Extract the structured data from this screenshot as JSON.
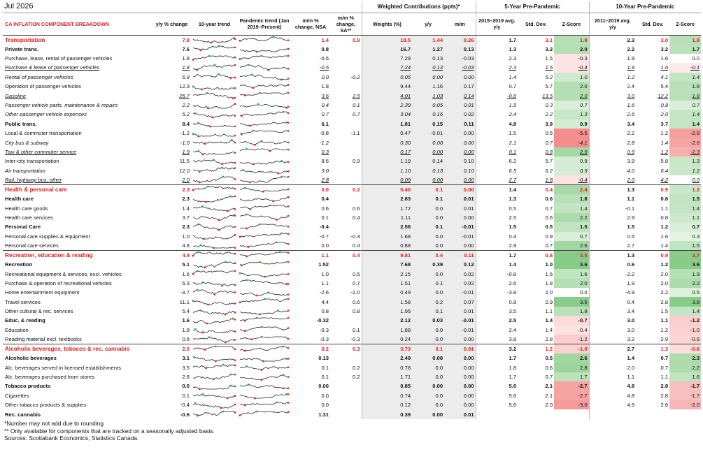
{
  "title": "Jul 2026",
  "groups": {
    "weighted": "Weighted Contributions (ppts)*",
    "five": "5-Year Pre-Pandemic",
    "ten": "10-Year Pre-Pandemic"
  },
  "headers": {
    "name": "CA INFLATION COMPONENT BREAKDOWN",
    "yy": "y/y % change",
    "trend10": "10-year trend",
    "pandemic": "Pandemic trend (Jan 2019–Present)",
    "mm_nsa": "m/m % change, NSA",
    "mm_sa": "m/m % change, SA**",
    "weights": "Weights (%)",
    "w_yy": "y/y",
    "w_mm": "m/m",
    "avg5": "2015–2019 avg. y/y",
    "sd5": "Std. Dev.",
    "z5": "Z-Score",
    "avg10": "2011–2019 avg. y/y",
    "sd10": "Std. Dev.",
    "z10": "Z-Score"
  },
  "colors": {
    "accent": "#e0201c",
    "z_red": "#f26b6b",
    "z_green": "#5cb85c"
  },
  "rows": [
    {
      "name": "Transportation",
      "style": "sec",
      "yy": "7.8",
      "nsa": "1.4",
      "sa": "0.8",
      "w": "18.5",
      "wyy": "1.44",
      "wmm": "0.26",
      "a5": "1.7",
      "s5": "3.1",
      "z5": "1.9",
      "a10": "2.3",
      "s10": "3.0",
      "z10": "1.8"
    },
    {
      "name": "Private trans.",
      "style": "bold",
      "yy": "7.6",
      "nsa": "0.8",
      "sa": "",
      "w": "16.7",
      "wyy": "1.27",
      "wmm": "0.13",
      "a5": "1.3",
      "s5": "3.2",
      "z5": "2.0",
      "a10": "2.2",
      "s10": "3.2",
      "z10": "1.7"
    },
    {
      "name": "Purchase, lease, rental of passenger vehicles",
      "style": "",
      "yy": "1.8",
      "nsa": "-0.5",
      "sa": "",
      "w": "7.29",
      "wyy": "0.13",
      "wmm": "-0.03",
      "a5": "2.3",
      "s5": "1.5",
      "z5": "-0.3",
      "a10": "1.9",
      "s10": "1.6",
      "z10": "0.0"
    },
    {
      "name": "Purchase & lease of passenger vehicles",
      "style": "it ul",
      "yy": "1.8",
      "nsa": "-0.5",
      "sa": "",
      "w": "7.24",
      "wyy": "0.13",
      "wmm": "-0.03",
      "a5": "2.3",
      "s5": "1.5",
      "z5": "-0.4",
      "a10": "1.9",
      "s10": "1.6",
      "z10": "-0.1"
    },
    {
      "name": "Rental of passenger vehicles",
      "style": "it",
      "yy": "6.8",
      "nsa": "0.0",
      "sa": "-0.2",
      "w": "0.05",
      "wyy": "0.00",
      "wmm": "0.00",
      "a5": "1.4",
      "s5": "5.2",
      "z5": "1.0",
      "a10": "1.2",
      "s10": "4.1",
      "z10": "1.4"
    },
    {
      "name": "Operation of passenger vehicles",
      "style": "",
      "yy": "12.3",
      "nsa": "1.8",
      "sa": "",
      "w": "9.44",
      "wyy": "1.16",
      "wmm": "0.17",
      "a5": "0.7",
      "s5": "5.7",
      "z5": "2.0",
      "a10": "2.4",
      "s10": "5.4",
      "z10": "1.8"
    },
    {
      "name": "Gasoline",
      "style": "it ul",
      "yy": "25.7",
      "nsa": "3.6",
      "sa": "2.5",
      "w": "4.01",
      "wyy": "1.03",
      "wmm": "0.14",
      "a5": "-0.6",
      "s5": "13.5",
      "z5": "2.0",
      "a10": "3.0",
      "s10": "12.2",
      "z10": "1.8"
    },
    {
      "name": "Passenger vehicle parts, maintenance & repairs",
      "style": "it",
      "yy": "2.2",
      "nsa": "0.4",
      "sa": "0.1",
      "w": "2.39",
      "wyy": "0.05",
      "wmm": "0.01",
      "a5": "1.9",
      "s5": "0.3",
      "z5": "0.7",
      "a10": "1.6",
      "s10": "0.8",
      "z10": "0.7"
    },
    {
      "name": "Other passenger vehicle expenses",
      "style": "it",
      "yy": "5.2",
      "nsa": "0.7",
      "sa": "0.7",
      "w": "3.04",
      "wyy": "0.16",
      "wmm": "0.02",
      "a5": "2.4",
      "s5": "2.2",
      "z5": "1.3",
      "a10": "2.6",
      "s10": "2.0",
      "z10": "1.4"
    },
    {
      "name": "Public trans.",
      "style": "bold",
      "yy": "8.4",
      "nsa": "6.1",
      "sa": "",
      "w": "1.81",
      "wyy": "0.15",
      "wmm": "0.11",
      "a5": "4.8",
      "s5": "3.9",
      "z5": "0.9",
      "a10": "3.4",
      "s10": "3.7",
      "z10": "1.4"
    },
    {
      "name": "Local & commuter transportation",
      "style": "",
      "yy": "-1.2",
      "nsa": "-0.8",
      "sa": "-1.1",
      "w": "0.47",
      "wyy": "-0.01",
      "wmm": "0.00",
      "a5": "1.5",
      "s5": "0.5",
      "z5": "-5.5",
      "a10": "2.2",
      "s10": "1.2",
      "z10": "-2.9"
    },
    {
      "name": "City bus & subway",
      "style": "it",
      "yy": "-1.0",
      "nsa": "-1.2",
      "sa": "",
      "w": "0.30",
      "wyy": "0.00",
      "wmm": "0.00",
      "a5": "2.1",
      "s5": "0.7",
      "z5": "-4.1",
      "a10": "2.8",
      "s10": "1.4",
      "z10": "-2.6"
    },
    {
      "name": "Taxi & other commuter service",
      "style": "it ul",
      "yy": "1.9",
      "nsa": "0.3",
      "sa": "",
      "w": "0.17",
      "wyy": "0.00",
      "wmm": "0.00",
      "a5": "0.1",
      "s5": "0.8",
      "z5": "2.5",
      "a10": "0.9",
      "s10": "1.2",
      "z10": "-2.3"
    },
    {
      "name": "Inter-city transportation",
      "style": "",
      "yy": "11.5",
      "nsa": "8.6",
      "sa": "0.9",
      "w": "1.19",
      "wyy": "0.14",
      "wmm": "0.10",
      "a5": "6.2",
      "s5": "5.7",
      "z5": "0.9",
      "a10": "3.9",
      "s10": "5.8",
      "z10": "1.3"
    },
    {
      "name": "Air transportation",
      "style": "it",
      "yy": "12.0",
      "nsa": "9.0",
      "sa": "",
      "w": "1.10",
      "wyy": "0.13",
      "wmm": "0.10",
      "a5": "6.5",
      "s5": "6.2",
      "z5": "0.9",
      "a10": "4.0",
      "s10": "6.4",
      "z10": "1.2"
    },
    {
      "name": "Rail, highway bus, other",
      "style": "it ul",
      "yy": "2.0",
      "nsa": "2.8",
      "sa": "",
      "w": "0.09",
      "wyy": "0.00",
      "wmm": "0.00",
      "a5": "2.7",
      "s5": "1.8",
      "z5": "-0.4",
      "a10": "2.0",
      "s10": "4.2",
      "z10": "0.0"
    },
    {
      "name": "Health & personal care",
      "style": "sec",
      "yy": "2.3",
      "nsa": "0.0",
      "sa": "0.2",
      "w": "5.40",
      "wyy": "0.1",
      "wmm": "0.00",
      "a5": "1.4",
      "s5": "0.4",
      "z5": "2.4",
      "a10": "1.3",
      "s10": "0.9",
      "z10": "1.2"
    },
    {
      "name": "Health care",
      "style": "bold",
      "yy": "2.3",
      "nsa": "0.4",
      "sa": "",
      "w": "2.83",
      "wyy": "0.1",
      "wmm": "0.01",
      "a5": "1.3",
      "s5": "0.6",
      "z5": "1.8",
      "a10": "1.1",
      "s10": "0.8",
      "z10": "1.5"
    },
    {
      "name": "Health care goods",
      "style": "",
      "yy": "1.4",
      "nsa": "0.6",
      "sa": "0.6",
      "w": "1.72",
      "wyy": "0.0",
      "wmm": "0.01",
      "a5": "0.5",
      "s5": "0.7",
      "z5": "1.4",
      "a10": "-0.1",
      "s10": "1.1",
      "z10": "1.4"
    },
    {
      "name": "Health care services",
      "style": "",
      "yy": "3.7",
      "nsa": "0.1",
      "sa": "0.4",
      "w": "1.11",
      "wyy": "0.0",
      "wmm": "0.00",
      "a5": "2.5",
      "s5": "0.6",
      "z5": "2.2",
      "a10": "2.9",
      "s10": "0.8",
      "z10": "1.1"
    },
    {
      "name": "Personal Care",
      "style": "bold",
      "yy": "2.3",
      "nsa": "-0.4",
      "sa": "",
      "w": "2.56",
      "wyy": "0.1",
      "wmm": "-0.01",
      "a5": "1.5",
      "s5": "0.5",
      "z5": "1.5",
      "a10": "1.5",
      "s10": "1.2",
      "z10": "0.7"
    },
    {
      "name": "Personal care supplies & equipment",
      "style": "",
      "yy": "1.0",
      "nsa": "-0.7",
      "sa": "-0.3",
      "w": "1.68",
      "wyy": "0.0",
      "wmm": "-0.01",
      "a5": "0.4",
      "s5": "0.9",
      "z5": "0.7",
      "a10": "0.5",
      "s10": "1.6",
      "z10": "0.3"
    },
    {
      "name": "Personal care services",
      "style": "",
      "yy": "4.8",
      "nsa": "0.0",
      "sa": "0.4",
      "w": "0.88",
      "wyy": "0.0",
      "wmm": "0.00",
      "a5": "2.9",
      "s5": "0.7",
      "z5": "2.6",
      "a10": "2.7",
      "s10": "1.4",
      "z10": "1.5"
    },
    {
      "name": "Recreation, education & reading",
      "style": "sec",
      "yy": "4.4",
      "nsa": "1.1",
      "sa": "0.4",
      "w": "9.81",
      "wyy": "0.4",
      "wmm": "0.11",
      "a5": "1.7",
      "s5": "0.8",
      "z5": "3.5",
      "a10": "1.3",
      "s10": "0.9",
      "z10": "3.7"
    },
    {
      "name": "Recreation",
      "style": "bold",
      "yy": "5.1",
      "nsa": "1.52",
      "sa": "",
      "w": "7.68",
      "wyy": "0.39",
      "wmm": "0.12",
      "a5": "1.4",
      "s5": "1.0",
      "z5": "3.6",
      "a10": "0.6",
      "s10": "1.2",
      "z10": "3.6"
    },
    {
      "name": "Recreational equipment & services, excl. vehicles",
      "style": "",
      "yy": "1.6",
      "nsa": "1.0",
      "sa": "0.5",
      "w": "2.15",
      "wyy": "0.0",
      "wmm": "0.02",
      "a5": "-0.8",
      "s5": "1.6",
      "z5": "1.6",
      "a10": "-2.2",
      "s10": "2.0",
      "z10": "1.9"
    },
    {
      "name": "Purchase & operation of recreational vehicles",
      "style": "",
      "yy": "6.3",
      "nsa": "1.1",
      "sa": "0.7",
      "w": "1.51",
      "wyy": "0.1",
      "wmm": "0.02",
      "a5": "2.6",
      "s5": "1.8",
      "z5": "2.0",
      "a10": "1.9",
      "s10": "2.0",
      "z10": "2.2"
    },
    {
      "name": "Home entertainment equipment",
      "style": "",
      "yy": "-3.7",
      "nsa": "-2.6",
      "sa": "-2.0",
      "w": "0.49",
      "wyy": "0.0",
      "wmm": "-0.01",
      "a5": "-3.8",
      "s5": "2.0",
      "z5": "0.0",
      "a10": "-4.9",
      "s10": "2.2",
      "z10": "0.5"
    },
    {
      "name": "Travel services",
      "style": "",
      "yy": "11.1",
      "nsa": "4.4",
      "sa": "0.6",
      "w": "1.58",
      "wyy": "0.2",
      "wmm": "0.07",
      "a5": "0.8",
      "s5": "2.9",
      "z5": "3.5",
      "a10": "0.4",
      "s10": "2.8",
      "z10": "3.8"
    },
    {
      "name": "Other cultural & rec. services",
      "style": "",
      "yy": "5.4",
      "nsa": "0.8",
      "sa": "0.8",
      "w": "1.95",
      "wyy": "0.1",
      "wmm": "0.01",
      "a5": "3.5",
      "s5": "1.1",
      "z5": "1.8",
      "a10": "3.4",
      "s10": "1.5",
      "z10": "1.4"
    },
    {
      "name": "Educ. & reading",
      "style": "bold",
      "yy": "1.6",
      "nsa": "-0.32",
      "sa": "",
      "w": "2.12",
      "wyy": "0.03",
      "wmm": "-0.01",
      "a5": "2.5",
      "s5": "1.4",
      "z5": "-0.7",
      "a10": "3.0",
      "s10": "1.1",
      "z10": "-1.2"
    },
    {
      "name": "Education",
      "style": "",
      "yy": "1.8",
      "nsa": "-0.3",
      "sa": "0.1",
      "w": "1.88",
      "wyy": "0.0",
      "wmm": "-0.01",
      "a5": "2.4",
      "s5": "1.4",
      "z5": "-0.4",
      "a10": "3.0",
      "s10": "1.2",
      "z10": "-1.0"
    },
    {
      "name": "Reading material excl. textbooks",
      "style": "",
      "yy": "0.6",
      "nsa": "-0.3",
      "sa": "-0.3",
      "w": "0.24",
      "wyy": "0.0",
      "wmm": "0.00",
      "a5": "3.8",
      "s5": "2.8",
      "z5": "-1.2",
      "a10": "3.2",
      "s10": "2.9",
      "z10": "-0.9"
    },
    {
      "name": "Alcoholic beverages, tobacco & rec. cannabis",
      "style": "sec",
      "yy": "2.0",
      "nsa": "0.2",
      "sa": "0.3",
      "w": "3.73",
      "wyy": "0.1",
      "wmm": "0.01",
      "a5": "3.2",
      "s5": "1.2",
      "z5": "-1.0",
      "a10": "2.7",
      "s10": "1.3",
      "z10": "-0.6"
    },
    {
      "name": "Alcoholic beverages",
      "style": "bold",
      "yy": "3.1",
      "nsa": "0.13",
      "sa": "",
      "w": "2.49",
      "wyy": "0.08",
      "wmm": "0.00",
      "a5": "1.7",
      "s5": "0.5",
      "z5": "2.6",
      "a10": "1.4",
      "s10": "0.7",
      "z10": "2.3"
    },
    {
      "name": "Alc. beverages served in licensed establishments",
      "style": "",
      "yy": "3.5",
      "nsa": "0.1",
      "sa": "0.2",
      "w": "0.78",
      "wyy": "0.0",
      "wmm": "0.00",
      "a5": "1.8",
      "s5": "0.6",
      "z5": "2.8",
      "a10": "2.0",
      "s10": "0.7",
      "z10": "2.2"
    },
    {
      "name": "Alc. beverages purchased from stores",
      "style": "",
      "yy": "2.8",
      "nsa": "0.1",
      "sa": "0.2",
      "w": "1.71",
      "wyy": "0.0",
      "wmm": "0.00",
      "a5": "1.7",
      "s5": "0.7",
      "z5": "1.7",
      "a10": "1.1",
      "s10": "1.1",
      "z10": "1.6"
    },
    {
      "name": "Tobacco products",
      "style": "bold",
      "yy": "0.0",
      "nsa": "0.00",
      "sa": "",
      "w": "0.85",
      "wyy": "0.00",
      "wmm": "0.00",
      "a5": "5.6",
      "s5": "2.1",
      "z5": "-2.7",
      "a10": "4.8",
      "s10": "2.8",
      "z10": "-1.7"
    },
    {
      "name": "Cigarettes",
      "style": "",
      "yy": "0.1",
      "nsa": "0.0",
      "sa": "",
      "w": "0.74",
      "wyy": "0.0",
      "wmm": "0.00",
      "a5": "5.6",
      "s5": "2.1",
      "z5": "-2.7",
      "a10": "4.8",
      "s10": "2.8",
      "z10": "-1.7"
    },
    {
      "name": "Other tobacco products & supplies",
      "style": "",
      "yy": "-0.4",
      "nsa": "0.0",
      "sa": "",
      "w": "0.12",
      "wyy": "0.0",
      "wmm": "0.00",
      "a5": "5.6",
      "s5": "2.0",
      "z5": "-3.0",
      "a10": "4.9",
      "s10": "2.6",
      "z10": "-2.0"
    },
    {
      "name": "Rec. cannabis",
      "style": "bold",
      "yy": "-0.6",
      "nsa": "1.31",
      "sa": "",
      "w": "0.39",
      "wyy": "0.00",
      "wmm": "0.01",
      "a5": "",
      "s5": "",
      "z5": "",
      "a10": "",
      "s10": "",
      "z10": ""
    }
  ],
  "notes": [
    "*Number may not add due to rounding",
    "** Only available for components that are tracked on a seasonally adjusted basis.",
    "Sources: Scotiabank Economics, Statistics Canada."
  ]
}
